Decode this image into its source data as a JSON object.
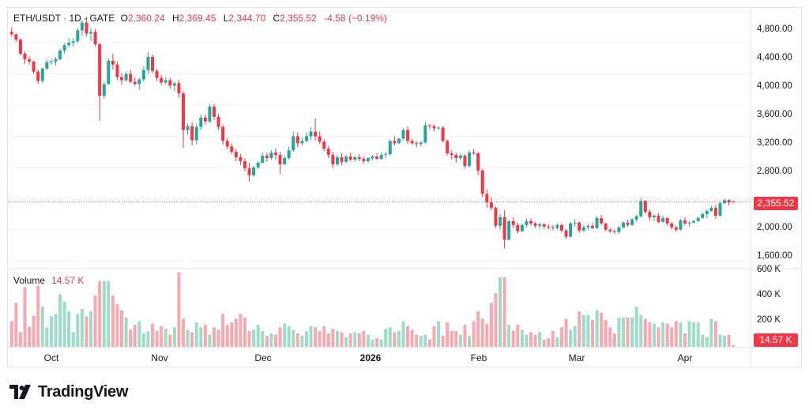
{
  "header": {
    "symbol": "ETH/USDT · 1D · GATE",
    "o_label": "O",
    "o_value": "2,360.24",
    "h_label": "H",
    "h_value": "2,369.45",
    "l_label": "L",
    "l_value": "2,344.70",
    "c_label": "C",
    "c_value": "2,355.52",
    "change": "-4.58 (−0.19%)"
  },
  "volume_legend": {
    "label": "Volume",
    "value": "14.57 K"
  },
  "price_axis_labels": [
    "4,800.00",
    "4,400.00",
    "4,000.00",
    "3,600.00",
    "3,200.00",
    "2,800.00",
    "2,000.00",
    "1,600.00"
  ],
  "volume_axis_labels": [
    "600 K",
    "400 K",
    "200 K"
  ],
  "time_axis_labels": [
    "Oct",
    "Nov",
    "Dec",
    "2026",
    "Feb",
    "Mar",
    "Apr"
  ],
  "last_price_tag": "2,355.52",
  "last_volume_tag": "14.57 K",
  "brand": "TradingView",
  "colors": {
    "up": "#26a69a",
    "down": "#f23645",
    "up_vol": "#9fdcc8",
    "down_vol": "#f7a9b0",
    "grid": "#f0f3fa"
  },
  "chart_data": {
    "type": "candlestick",
    "price_ylim": [
      1500,
      4950
    ],
    "volume_ylim": [
      0,
      640
    ],
    "volume_unit": "K",
    "last_price": 2355.52,
    "candles": [
      [
        4540,
        4600,
        4480,
        4510,
        210
      ],
      [
        4510,
        4520,
        4410,
        4440,
        360
      ],
      [
        4440,
        4460,
        4240,
        4260,
        120
      ],
      [
        4260,
        4290,
        4130,
        4190,
        490
      ],
      [
        4190,
        4230,
        4120,
        4160,
        165
      ],
      [
        4160,
        4170,
        4000,
        4030,
        255
      ],
      [
        4030,
        4060,
        3870,
        3910,
        500
      ],
      [
        3910,
        4080,
        3880,
        4070,
        330
      ],
      [
        4070,
        4180,
        4050,
        4150,
        160
      ],
      [
        4150,
        4190,
        4120,
        4160,
        250
      ],
      [
        4160,
        4220,
        4110,
        4190,
        270
      ],
      [
        4190,
        4320,
        4180,
        4300,
        430
      ],
      [
        4300,
        4400,
        4260,
        4370,
        370
      ],
      [
        4370,
        4460,
        4340,
        4400,
        290
      ],
      [
        4400,
        4460,
        4350,
        4420,
        120
      ],
      [
        4420,
        4590,
        4400,
        4560,
        270
      ],
      [
        4560,
        4690,
        4490,
        4660,
        310
      ],
      [
        4660,
        4730,
        4480,
        4520,
        250
      ],
      [
        4520,
        4590,
        4420,
        4540,
        290
      ],
      [
        4540,
        4580,
        4350,
        4380,
        420
      ],
      [
        4380,
        4400,
        3400,
        3720,
        540
      ],
      [
        3720,
        3900,
        3680,
        3870,
        540
      ],
      [
        3870,
        4200,
        3860,
        4170,
        540
      ],
      [
        4170,
        4260,
        4060,
        4120,
        420
      ],
      [
        4120,
        4160,
        3920,
        3960,
        350
      ],
      [
        3960,
        4010,
        3860,
        3920,
        300
      ],
      [
        3920,
        4030,
        3900,
        4000,
        240
      ],
      [
        4000,
        4050,
        3880,
        3900,
        140
      ],
      [
        3900,
        3960,
        3850,
        3870,
        180
      ],
      [
        3870,
        3950,
        3800,
        3930,
        210
      ],
      [
        3930,
        4100,
        3900,
        4050,
        110
      ],
      [
        4050,
        4280,
        4000,
        4220,
        130
      ],
      [
        4220,
        4250,
        4010,
        4040,
        190
      ],
      [
        4040,
        4070,
        3910,
        3950,
        130
      ],
      [
        3950,
        3990,
        3860,
        3890,
        170
      ],
      [
        3890,
        3960,
        3870,
        3920,
        150
      ],
      [
        3920,
        3950,
        3810,
        3850,
        100
      ],
      [
        3850,
        3900,
        3780,
        3880,
        160
      ],
      [
        3880,
        3920,
        3700,
        3750,
        610
      ],
      [
        3750,
        3780,
        3050,
        3280,
        230
      ],
      [
        3280,
        3360,
        3220,
        3330,
        140
      ],
      [
        3330,
        3380,
        3080,
        3150,
        120
      ],
      [
        3150,
        3360,
        3100,
        3320,
        200
      ],
      [
        3320,
        3480,
        3280,
        3440,
        160
      ],
      [
        3440,
        3480,
        3350,
        3390,
        180
      ],
      [
        3390,
        3620,
        3370,
        3580,
        100
      ],
      [
        3580,
        3610,
        3410,
        3450,
        160
      ],
      [
        3450,
        3490,
        3280,
        3320,
        140
      ],
      [
        3320,
        3350,
        3090,
        3140,
        270
      ],
      [
        3140,
        3180,
        3030,
        3070,
        180
      ],
      [
        3070,
        3110,
        2970,
        3000,
        200
      ],
      [
        3000,
        3040,
        2880,
        2930,
        230
      ],
      [
        2930,
        2970,
        2830,
        2880,
        270
      ],
      [
        2880,
        2920,
        2750,
        2790,
        240
      ],
      [
        2790,
        2860,
        2620,
        2700,
        130
      ],
      [
        2700,
        2820,
        2680,
        2800,
        140
      ],
      [
        2800,
        2880,
        2780,
        2860,
        180
      ],
      [
        2860,
        2990,
        2850,
        2950,
        130
      ],
      [
        2950,
        2990,
        2870,
        2920,
        90
      ],
      [
        2920,
        3020,
        2900,
        2990,
        110
      ],
      [
        2990,
        3040,
        2900,
        2960,
        100
      ],
      [
        2960,
        3000,
        2720,
        2840,
        160
      ],
      [
        2840,
        2950,
        2830,
        2920,
        190
      ],
      [
        2920,
        3070,
        2900,
        3020,
        170
      ],
      [
        3020,
        3260,
        3000,
        3200,
        140
      ],
      [
        3200,
        3250,
        3060,
        3110,
        110
      ],
      [
        3110,
        3180,
        3080,
        3140,
        90
      ],
      [
        3140,
        3250,
        3120,
        3200,
        130
      ],
      [
        3200,
        3320,
        3150,
        3260,
        170
      ],
      [
        3260,
        3430,
        3140,
        3200,
        160
      ],
      [
        3200,
        3260,
        3100,
        3130,
        130
      ],
      [
        3130,
        3160,
        3010,
        3040,
        170
      ],
      [
        3040,
        3080,
        2920,
        2960,
        110
      ],
      [
        2960,
        3000,
        2790,
        2840,
        150
      ],
      [
        2840,
        2960,
        2820,
        2930,
        130
      ],
      [
        2930,
        2980,
        2830,
        2870,
        120
      ],
      [
        2870,
        2960,
        2860,
        2940,
        80
      ],
      [
        2940,
        2990,
        2880,
        2900,
        110
      ],
      [
        2900,
        2950,
        2870,
        2930,
        120
      ],
      [
        2930,
        2970,
        2880,
        2910,
        110
      ],
      [
        2910,
        2940,
        2850,
        2880,
        130
      ],
      [
        2880,
        2930,
        2860,
        2920,
        100
      ],
      [
        2920,
        2960,
        2890,
        2940,
        60
      ],
      [
        2940,
        2980,
        2900,
        2910,
        70
      ],
      [
        2910,
        2990,
        2900,
        2960,
        60
      ],
      [
        2960,
        3000,
        2920,
        2970,
        150
      ],
      [
        2970,
        3160,
        2950,
        3140,
        160
      ],
      [
        3140,
        3200,
        3080,
        3110,
        120
      ],
      [
        3110,
        3180,
        3100,
        3170,
        130
      ],
      [
        3170,
        3300,
        3150,
        3280,
        210
      ],
      [
        3280,
        3330,
        3100,
        3140,
        170
      ],
      [
        3140,
        3170,
        3090,
        3110,
        140
      ],
      [
        3110,
        3140,
        3060,
        3100,
        100
      ],
      [
        3100,
        3140,
        3070,
        3120,
        90
      ],
      [
        3120,
        3380,
        3100,
        3340,
        100
      ],
      [
        3340,
        3360,
        3290,
        3330,
        60
      ],
      [
        3330,
        3350,
        3260,
        3300,
        170
      ],
      [
        3300,
        3330,
        3280,
        3310,
        210
      ],
      [
        3310,
        3330,
        3120,
        3140,
        90
      ],
      [
        3140,
        3160,
        2950,
        2980,
        200
      ],
      [
        2980,
        3020,
        2900,
        2960,
        130
      ],
      [
        2960,
        2990,
        2860,
        2920,
        130
      ],
      [
        2920,
        2980,
        2890,
        2950,
        100
      ],
      [
        2950,
        2970,
        2790,
        2820,
        180
      ],
      [
        2820,
        3020,
        2800,
        2990,
        90
      ],
      [
        2990,
        3040,
        2960,
        2980,
        210
      ],
      [
        2980,
        3000,
        2700,
        2760,
        290
      ],
      [
        2760,
        2780,
        2420,
        2460,
        230
      ],
      [
        2460,
        2520,
        2280,
        2350,
        190
      ],
      [
        2350,
        2420,
        2250,
        2280,
        360
      ],
      [
        2280,
        2300,
        2020,
        2050,
        440
      ],
      [
        2050,
        2200,
        2000,
        2160,
        570
      ],
      [
        2160,
        2250,
        1760,
        1870,
        570
      ],
      [
        1870,
        2120,
        1860,
        2110,
        180
      ],
      [
        2110,
        2160,
        2020,
        2060,
        130
      ],
      [
        2060,
        2090,
        1950,
        1980,
        180
      ],
      [
        1980,
        2080,
        1970,
        2060,
        140
      ],
      [
        2060,
        2140,
        2030,
        2110,
        100
      ],
      [
        2110,
        2150,
        2050,
        2080,
        120
      ],
      [
        2080,
        2100,
        2020,
        2050,
        100
      ],
      [
        2050,
        2090,
        2010,
        2070,
        120
      ],
      [
        2070,
        2080,
        2010,
        2040,
        60
      ],
      [
        2040,
        2070,
        2000,
        2030,
        70
      ],
      [
        2030,
        2060,
        1990,
        2020,
        130
      ],
      [
        2020,
        2080,
        2000,
        2060,
        80
      ],
      [
        2060,
        2080,
        1960,
        1990,
        160
      ],
      [
        1990,
        2010,
        1880,
        1910,
        230
      ],
      [
        1910,
        2100,
        1900,
        2080,
        140
      ],
      [
        2080,
        2140,
        2040,
        2090,
        170
      ],
      [
        2090,
        2110,
        1960,
        1990,
        290
      ],
      [
        1990,
        2060,
        1970,
        2030,
        260
      ],
      [
        2030,
        2080,
        2000,
        2050,
        260
      ],
      [
        2050,
        2090,
        2010,
        2020,
        220
      ],
      [
        2020,
        2180,
        2010,
        2150,
        300
      ],
      [
        2150,
        2190,
        2060,
        2080,
        280
      ],
      [
        2080,
        2090,
        1980,
        2000,
        220
      ],
      [
        2000,
        2020,
        1960,
        1980,
        160
      ],
      [
        1980,
        2000,
        1940,
        1970,
        110
      ],
      [
        1970,
        2050,
        1950,
        2030,
        240
      ],
      [
        2030,
        2110,
        2010,
        2090,
        240
      ],
      [
        2090,
        2130,
        2040,
        2060,
        240
      ],
      [
        2060,
        2150,
        2050,
        2130,
        240
      ],
      [
        2130,
        2190,
        2100,
        2170,
        330
      ],
      [
        2170,
        2410,
        2160,
        2370,
        260
      ],
      [
        2370,
        2380,
        2200,
        2230,
        230
      ],
      [
        2230,
        2260,
        2120,
        2160,
        200
      ],
      [
        2160,
        2200,
        2110,
        2180,
        190
      ],
      [
        2180,
        2210,
        2080,
        2100,
        160
      ],
      [
        2100,
        2180,
        2090,
        2150,
        200
      ],
      [
        2150,
        2160,
        2050,
        2080,
        190
      ],
      [
        2080,
        2100,
        2000,
        2030,
        160
      ],
      [
        2030,
        2050,
        1970,
        2000,
        210
      ],
      [
        2000,
        2140,
        1990,
        2120,
        200
      ],
      [
        2120,
        2160,
        2060,
        2080,
        110
      ],
      [
        2080,
        2110,
        2040,
        2090,
        210
      ],
      [
        2090,
        2130,
        2080,
        2110,
        200
      ],
      [
        2110,
        2170,
        2100,
        2150,
        200
      ],
      [
        2150,
        2220,
        2140,
        2200,
        100
      ],
      [
        2200,
        2260,
        2150,
        2240,
        80
      ],
      [
        2240,
        2310,
        2230,
        2280,
        230
      ],
      [
        2280,
        2320,
        2140,
        2180,
        210
      ],
      [
        2180,
        2360,
        2170,
        2340,
        100
      ],
      [
        2340,
        2400,
        2330,
        2380,
        90
      ],
      [
        2380,
        2390,
        2310,
        2350,
        100
      ],
      [
        2360,
        2370,
        2345,
        2356,
        15
      ]
    ]
  }
}
